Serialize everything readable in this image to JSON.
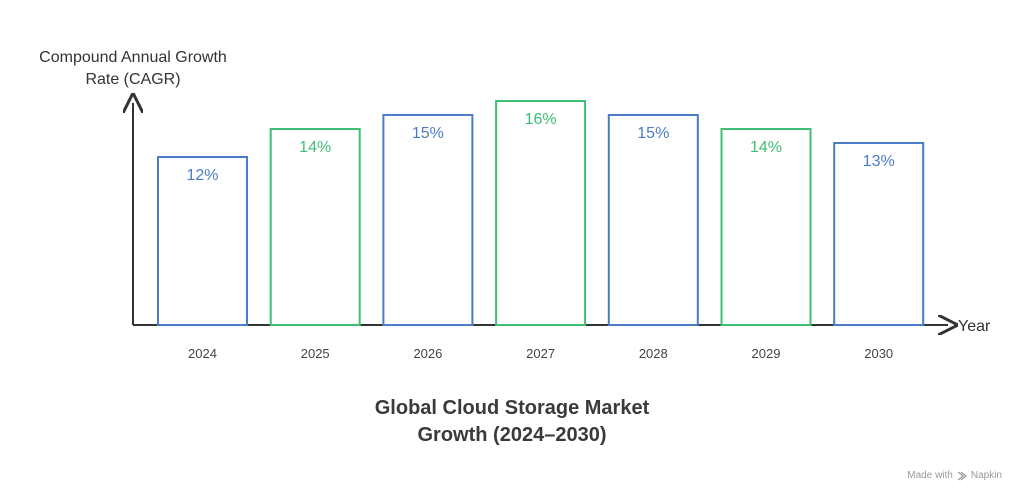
{
  "chart_data": {
    "type": "bar",
    "title_lines": [
      "Global Cloud Storage Market",
      "Growth (2024–2030)"
    ],
    "ylabel_lines": [
      "Compound Annual Growth",
      "Rate (CAGR)"
    ],
    "xlabel": "Year",
    "categories": [
      "2024",
      "2025",
      "2026",
      "2027",
      "2028",
      "2029",
      "2030"
    ],
    "values": [
      12,
      14,
      15,
      16,
      15,
      14,
      13
    ],
    "value_labels": [
      "12%",
      "14%",
      "15%",
      "16%",
      "15%",
      "14%",
      "13%"
    ],
    "bar_colors": [
      "#4a7cc7",
      "#3fbf74",
      "#4a7cc7",
      "#3fbf74",
      "#4a7cc7",
      "#3fbf74",
      "#4a7cc7"
    ],
    "ylim": [
      0,
      16
    ],
    "grid": false
  },
  "footer": {
    "made_with": "Made with",
    "brand": "Napkin"
  }
}
